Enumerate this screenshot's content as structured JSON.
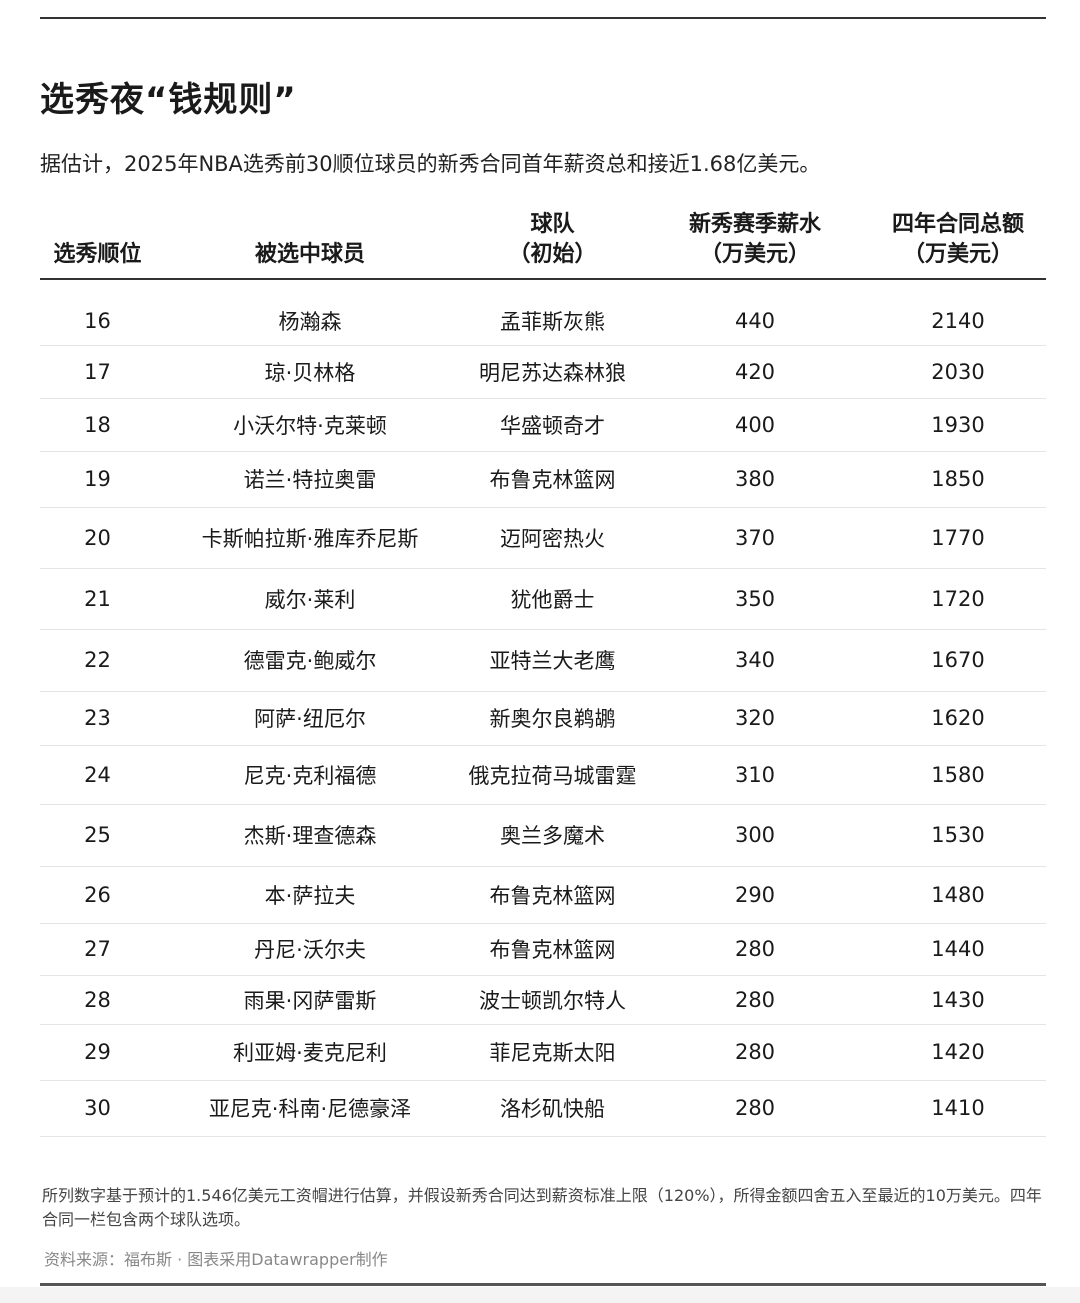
{
  "title": "选秀夜“钱规则”",
  "subtitle": "据估计，2025年NBA选秀前30顺位球员的新秀合同首年薪资总和接近1.68亿美元。",
  "table": {
    "headers": [
      "选秀顺位",
      "被选中球员",
      "球队\n（初始）",
      "新秀赛季薪水\n（万美元）",
      "四年合同总额\n（万美元）"
    ],
    "rows": [
      [
        "16",
        "杨瀚森",
        "孟菲斯灰熊",
        "440",
        "2140"
      ],
      [
        "17",
        "琼·贝林格",
        "明尼苏达森林狼",
        "420",
        "2030"
      ],
      [
        "18",
        "小沃尔特·克莱顿",
        "华盛顿奇才",
        "400",
        "1930"
      ],
      [
        "19",
        "诺兰·特拉奥雷",
        "布鲁克林篮网",
        "380",
        "1850"
      ],
      [
        "20",
        "卡斯帕拉斯·雅库乔尼斯",
        "迈阿密热火",
        "370",
        "1770"
      ],
      [
        "21",
        "威尔·莱利",
        "犹他爵士",
        "350",
        "1720"
      ],
      [
        "22",
        "德雷克·鲍威尔",
        "亚特兰大老鹰",
        "340",
        "1670"
      ],
      [
        "23",
        "阿萨·纽厄尔",
        "新奥尔良鹈鹕",
        "320",
        "1620"
      ],
      [
        "24",
        "尼克·克利福德",
        "俄克拉荷马城雷霆",
        "310",
        "1580"
      ],
      [
        "25",
        "杰斯·理查德森",
        "奥兰多魔术",
        "300",
        "1530"
      ],
      [
        "26",
        "本·萨拉夫",
        "布鲁克林篮网",
        "290",
        "1480"
      ],
      [
        "27",
        "丹尼·沃尔夫",
        "布鲁克林篮网",
        "280",
        "1440"
      ],
      [
        "28",
        "雨果·冈萨雷斯",
        "波士顿凯尔特人",
        "280",
        "1430"
      ],
      [
        "29",
        "利亚姆·麦克尼利",
        "菲尼克斯太阳",
        "280",
        "1420"
      ],
      [
        "30",
        "亚尼克·科南·尼德豪泽",
        "洛杉矶快船",
        "280",
        "1410"
      ]
    ]
  },
  "note": "所列数字基于预计的1.546亿美元工资帽进行估算，并假设新秀合同达到薪资标准上限（120%），所得金额四舍五入至最近的10万美元。四年合同一栏包含两个球队选项。",
  "source": "资料来源：福布斯 · 图表采用Datawrapper制作"
}
